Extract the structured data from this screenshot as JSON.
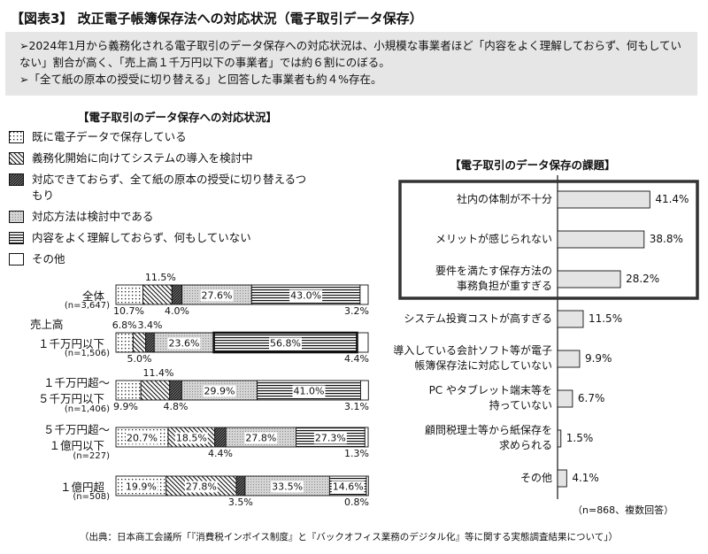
{
  "header": {
    "title": "【図表3】 改正電子帳簿保存法への対応状況（電子取引データ保存）",
    "bullet1": "➢2024年1月から義務化される電子取引のデータ保存への対応状況は、小規模な事業者ほど「内容をよく理解しておらず、何もしていない」割合が高く、「売上高１千万円以下の事業者」では約６割にのぼる。",
    "bullet2": "➢「全て紙の原本の授受に切り替える」と回答した事業者も約４%存在。"
  },
  "left_title": "【電子取引のデータ保存への対応状況】",
  "right_title": "【電子取引のデータ保存の課題】",
  "source": "（出典：日本商工会議所「『消費税インボイス制度』と『バックオフィス業務のデジタル化』等に関する実態調査結果について」）",
  "right_note": "（n=868、複数回答）",
  "sales_heading": "売上高",
  "chart_data": [
    {
      "type": "bar",
      "orientation": "horizontal",
      "stacked": true,
      "normalized_percent": true,
      "title": "【電子取引のデータ保存への対応状況】",
      "series": [
        {
          "name": "既に電子データで保存している",
          "pattern": "dots",
          "values": [
            10.7,
            6.8,
            9.9,
            20.7,
            19.9
          ]
        },
        {
          "name": "義務化開始に向けてシステムの導入を検討中",
          "pattern": "back-diagonal",
          "values": [
            11.5,
            5.0,
            11.4,
            18.5,
            27.8
          ]
        },
        {
          "name": "対応できておらず、全て紙の原本の授受に切り替えるつもり",
          "pattern": "dense-diagonal",
          "values": [
            4.0,
            3.4,
            4.8,
            4.4,
            3.5
          ]
        },
        {
          "name": "対応方法は検討中である",
          "pattern": "fine-dots",
          "values": [
            27.6,
            23.6,
            29.9,
            27.8,
            33.5
          ]
        },
        {
          "name": "内容をよく理解しておらず、何もしていない",
          "pattern": "horizontal-lines",
          "values": [
            43.0,
            56.8,
            41.0,
            27.3,
            14.6
          ]
        },
        {
          "name": "その他",
          "pattern": "none",
          "values": [
            3.2,
            4.4,
            3.1,
            1.3,
            0.8
          ]
        }
      ],
      "categories": [
        {
          "label": [
            "全体"
          ],
          "n": "(n=3,647)"
        },
        {
          "label": [
            "１千万円以下"
          ],
          "n": "(n=1,506)"
        },
        {
          "label": [
            "１千万円超～",
            "５千万円以下"
          ],
          "n": "(n=1,406)"
        },
        {
          "label": [
            "５千万円超～",
            "１億円以下"
          ],
          "n": "(n=227)"
        },
        {
          "label": [
            "１億円超"
          ],
          "n": "(n=508)"
        }
      ],
      "display": [
        {
          "inside": [
            "",
            "",
            "",
            "27.6%",
            "43.0%",
            ""
          ],
          "above": [
            [
              "11.5%",
              1
            ]
          ],
          "below": [
            [
              "10.7%",
              0
            ],
            [
              "4.0%",
              2
            ],
            [
              "3.2%",
              5
            ]
          ]
        },
        {
          "inside": [
            "",
            "",
            "",
            "23.6%",
            "56.8%",
            ""
          ],
          "above": [
            [
              "6.8%",
              0
            ],
            [
              "3.4%",
              2
            ]
          ],
          "below": [
            [
              "5.0%",
              1
            ],
            [
              "4.4%",
              5
            ]
          ]
        },
        {
          "inside": [
            "",
            "",
            "",
            "29.9%",
            "41.0%",
            ""
          ],
          "above": [
            [
              "11.4%",
              1
            ]
          ],
          "below": [
            [
              "9.9%",
              0
            ],
            [
              "4.8%",
              2
            ],
            [
              "3.1%",
              5
            ]
          ]
        },
        {
          "inside": [
            "20.7%",
            "18.5%",
            "",
            "27.8%",
            "27.3%",
            ""
          ],
          "above": [],
          "below": [
            [
              "4.4%",
              2
            ],
            [
              "1.3%",
              5
            ]
          ]
        },
        {
          "inside": [
            "19.9%",
            "27.8%",
            "",
            "33.5%",
            "14.6%",
            ""
          ],
          "above": [],
          "below": [
            [
              "3.5%",
              2
            ],
            [
              "0.8%",
              5
            ]
          ]
        }
      ],
      "highlight": "１千万円以下 / 内容をよく理解しておらず、何もしていない"
    },
    {
      "type": "bar",
      "orientation": "horizontal",
      "title": "【電子取引のデータ保存の課題】",
      "categories": [
        [
          "社内の体制が不十分"
        ],
        [
          "メリットが感じられない"
        ],
        [
          "要件を満たす保存方法の",
          "事務負担が重すぎる"
        ],
        [
          "システム投資コストが高すぎる"
        ],
        [
          "導入している会計ソフト等が電子",
          "帳簿保存法に対応していない"
        ],
        [
          "PC やタブレット端末等を",
          "持っていない"
        ],
        [
          "顧問税理士等から紙保存を",
          "求められる"
        ],
        [
          "その他"
        ]
      ],
      "values": [
        41.4,
        38.8,
        28.2,
        11.5,
        9.9,
        6.7,
        1.5,
        4.1
      ],
      "labels": [
        "41.4%",
        "38.8%",
        "28.2%",
        "11.5%",
        "9.9%",
        "6.7%",
        "1.5%",
        "4.1%"
      ],
      "highlight_top": 3
    }
  ]
}
